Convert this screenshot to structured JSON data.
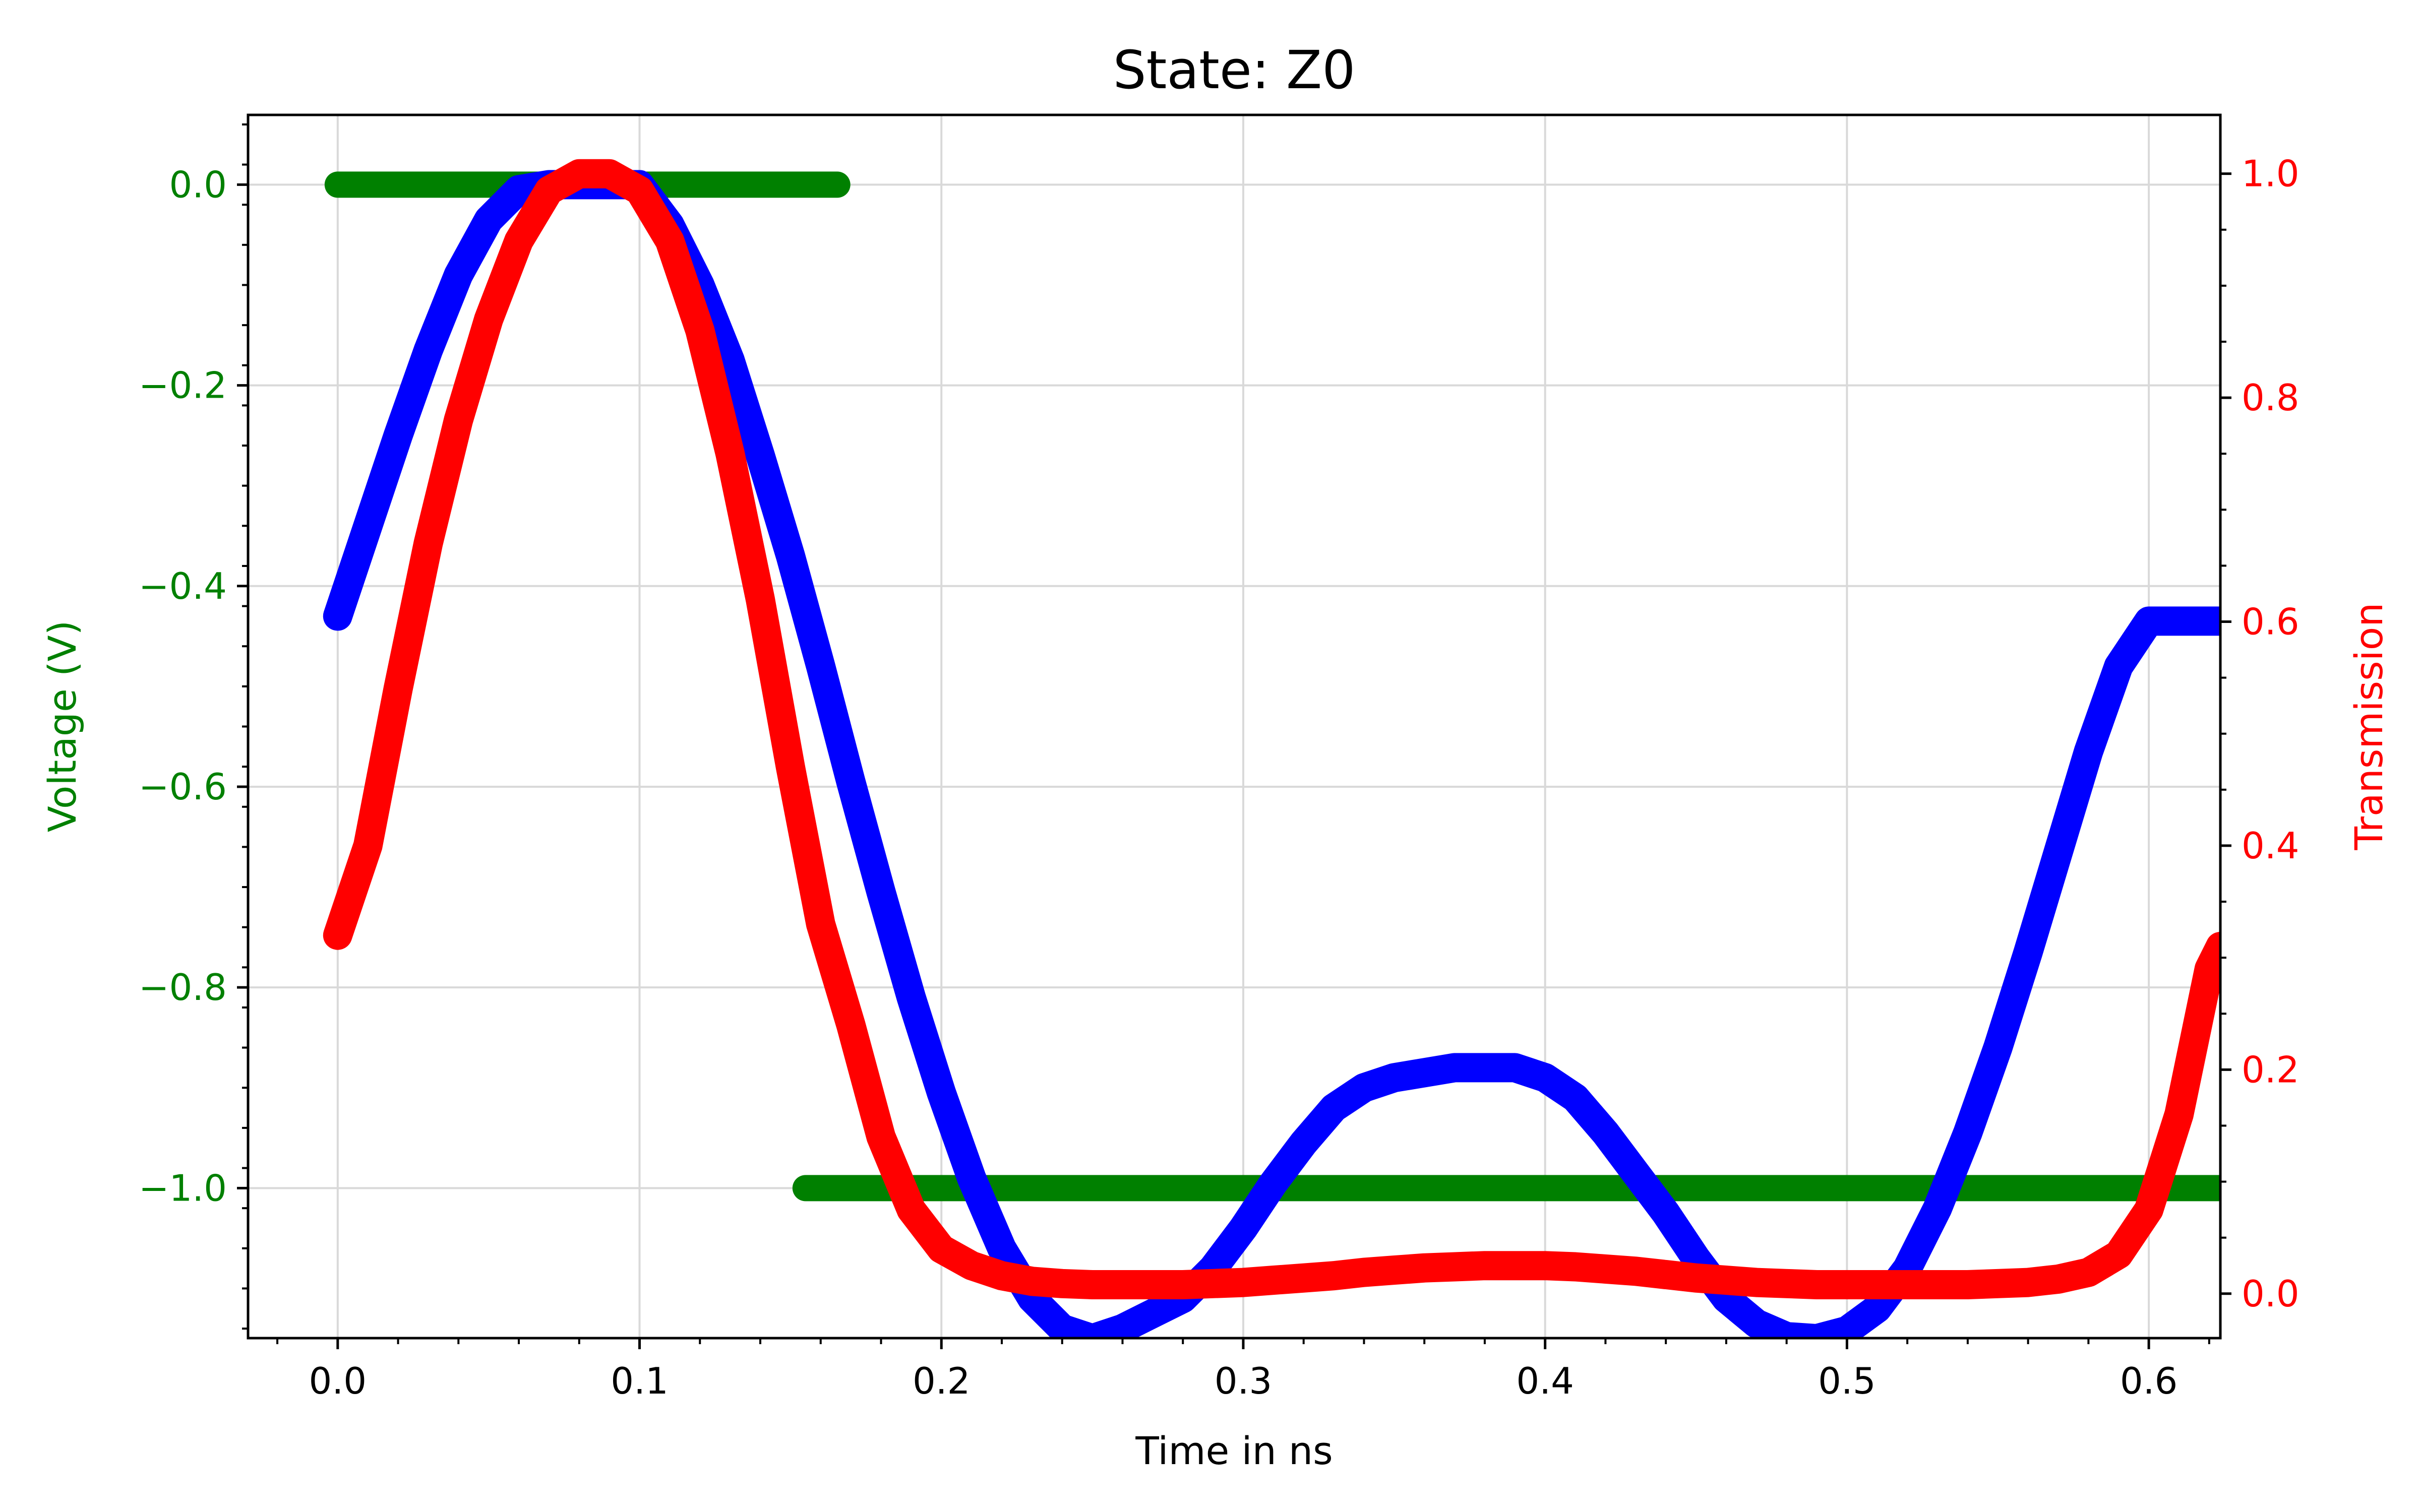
{
  "chart_data": {
    "type": "line",
    "title": "State: Z0",
    "xlabel": "Time in ns",
    "ylabel_left": "Voltage (V)",
    "ylabel_right": "Transmission",
    "xlim": [
      -0.0297,
      0.6237
    ],
    "ylim_left": [
      -1.1495,
      0.0695
    ],
    "ylim_right": [
      -0.0397,
      1.0525
    ],
    "grid": true,
    "xticks": [
      0.0,
      0.1,
      0.2,
      0.3,
      0.4,
      0.5,
      0.6
    ],
    "xtick_labels": [
      "0.0",
      "0.1",
      "0.2",
      "0.3",
      "0.4",
      "0.5",
      "0.6"
    ],
    "yticks_left": [
      0.0,
      -0.2,
      -0.4,
      -0.6,
      -0.8,
      -1.0
    ],
    "ytick_labels_left": [
      "0.0",
      "−0.2",
      "−0.4",
      "−0.6",
      "−0.8",
      "−1.0"
    ],
    "yticks_right": [
      0.0,
      0.2,
      0.4,
      0.6,
      0.8,
      1.0
    ],
    "ytick_labels_right": [
      "0.0",
      "0.2",
      "0.4",
      "0.6",
      "0.8",
      "1.0"
    ],
    "colors": {
      "voltage_axis": "#008000",
      "transmission_axis": "#ff0000",
      "drive": "#008000",
      "waveform": "#0000ff",
      "transmission": "#ff0000",
      "grid": "#d9d9d9"
    },
    "series": [
      {
        "axis": "left",
        "color": "#008000",
        "segments": [
          {
            "x": [
              0.0,
              0.1655
            ],
            "y": [
              0.0,
              0.0
            ]
          },
          {
            "x": [
              0.155,
              0.6237
            ],
            "y": [
              -1.0,
              -1.0
            ]
          }
        ]
      },
      {
        "axis": "left",
        "color": "#0000ff",
        "x": [
          0.0,
          0.01,
          0.02,
          0.03,
          0.04,
          0.05,
          0.06,
          0.07,
          0.08,
          0.09,
          0.1,
          0.11,
          0.12,
          0.13,
          0.14,
          0.15,
          0.16,
          0.17,
          0.18,
          0.19,
          0.2,
          0.21,
          0.22,
          0.23,
          0.24,
          0.25,
          0.26,
          0.27,
          0.28,
          0.29,
          0.3,
          0.31,
          0.32,
          0.33,
          0.34,
          0.35,
          0.36,
          0.37,
          0.38,
          0.39,
          0.4,
          0.41,
          0.42,
          0.43,
          0.44,
          0.45,
          0.46,
          0.47,
          0.48,
          0.49,
          0.5,
          0.51,
          0.52,
          0.53,
          0.54,
          0.55,
          0.56,
          0.57,
          0.58,
          0.59,
          0.6,
          0.61,
          0.62,
          0.6237
        ],
        "y": [
          -0.43,
          -0.34,
          -0.25,
          -0.165,
          -0.09,
          -0.035,
          -0.005,
          0.0,
          0.0,
          0.0,
          0.0,
          -0.04,
          -0.1,
          -0.175,
          -0.27,
          -0.37,
          -0.48,
          -0.595,
          -0.705,
          -0.81,
          -0.905,
          -0.99,
          -1.06,
          -1.11,
          -1.14,
          -1.15,
          -1.14,
          -1.125,
          -1.11,
          -1.08,
          -1.04,
          -0.995,
          -0.955,
          -0.92,
          -0.9,
          -0.89,
          -0.885,
          -0.88,
          -0.88,
          -0.88,
          -0.89,
          -0.91,
          -0.945,
          -0.985,
          -1.025,
          -1.07,
          -1.11,
          -1.135,
          -1.148,
          -1.15,
          -1.142,
          -1.12,
          -1.08,
          -1.02,
          -0.945,
          -0.86,
          -0.765,
          -0.665,
          -0.565,
          -0.48,
          -0.435,
          -0.435,
          -0.435,
          -0.435
        ]
      },
      {
        "axis": "right",
        "color": "#ff0000",
        "x": [
          0.0,
          0.01,
          0.02,
          0.03,
          0.04,
          0.05,
          0.06,
          0.07,
          0.08,
          0.09,
          0.1,
          0.11,
          0.12,
          0.13,
          0.14,
          0.15,
          0.16,
          0.17,
          0.18,
          0.19,
          0.2,
          0.21,
          0.22,
          0.23,
          0.24,
          0.25,
          0.26,
          0.27,
          0.28,
          0.29,
          0.3,
          0.31,
          0.32,
          0.33,
          0.34,
          0.35,
          0.36,
          0.37,
          0.38,
          0.39,
          0.4,
          0.41,
          0.42,
          0.43,
          0.44,
          0.45,
          0.46,
          0.47,
          0.48,
          0.49,
          0.5,
          0.51,
          0.52,
          0.53,
          0.54,
          0.55,
          0.56,
          0.57,
          0.58,
          0.59,
          0.6,
          0.61,
          0.62,
          0.6237
        ],
        "y": [
          0.32,
          0.4,
          0.54,
          0.67,
          0.78,
          0.87,
          0.94,
          0.985,
          1.0,
          1.0,
          0.985,
          0.94,
          0.86,
          0.75,
          0.62,
          0.47,
          0.33,
          0.24,
          0.14,
          0.075,
          0.04,
          0.025,
          0.016,
          0.011,
          0.009,
          0.008,
          0.008,
          0.008,
          0.008,
          0.009,
          0.01,
          0.012,
          0.014,
          0.016,
          0.019,
          0.021,
          0.023,
          0.024,
          0.025,
          0.025,
          0.025,
          0.024,
          0.022,
          0.02,
          0.017,
          0.014,
          0.012,
          0.01,
          0.009,
          0.008,
          0.008,
          0.008,
          0.008,
          0.008,
          0.008,
          0.009,
          0.01,
          0.013,
          0.019,
          0.035,
          0.075,
          0.16,
          0.29,
          0.31
        ]
      }
    ]
  }
}
